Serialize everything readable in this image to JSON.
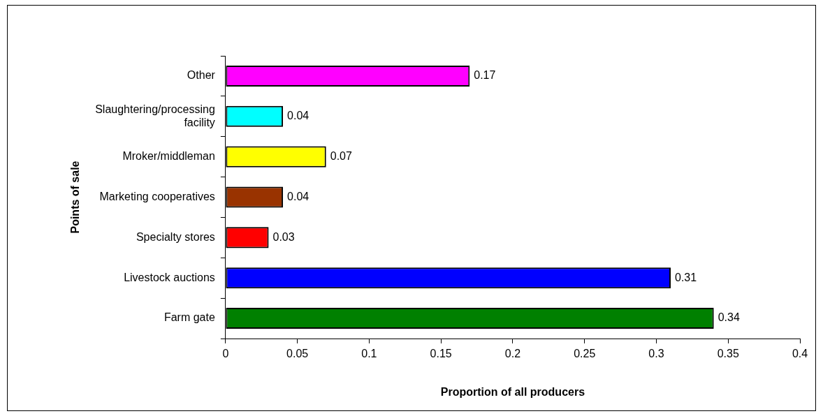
{
  "chart_data": {
    "type": "bar",
    "orientation": "horizontal",
    "xlabel": "Proportion of all producers",
    "ylabel": "Points of sale",
    "categories": [
      "Other",
      "Slaughtering/processing facility",
      "Mroker/middleman",
      "Marketing cooperatives",
      "Specialty stores",
      "Livestock auctions",
      "Farm gate"
    ],
    "values": [
      0.17,
      0.04,
      0.07,
      0.04,
      0.03,
      0.31,
      0.34
    ],
    "colors": [
      "#ff00ff",
      "#00ffff",
      "#ffff00",
      "#993300",
      "#ff0000",
      "#0000ff",
      "#008000"
    ],
    "xlim": [
      0,
      0.4
    ],
    "xticks": [
      0,
      0.05,
      0.1,
      0.15,
      0.2,
      0.25,
      0.3,
      0.35,
      0.4
    ],
    "data_labels": true,
    "grid": false,
    "legend": false
  }
}
